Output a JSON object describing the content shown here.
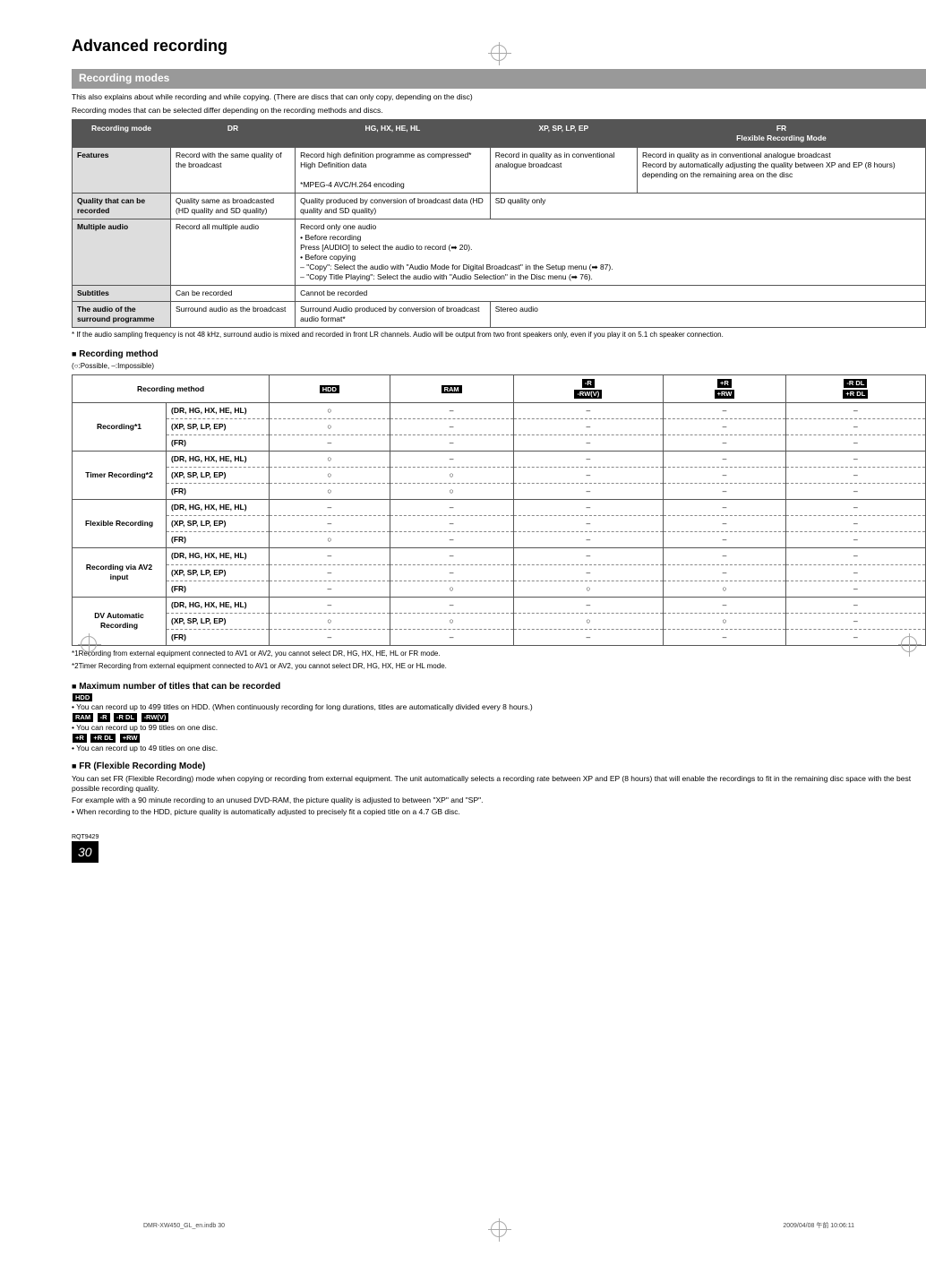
{
  "page": {
    "title": "Advanced recording",
    "section_bar": "Recording modes",
    "intro1": "This also explains about while recording and while copying. (There are discs that can only copy, depending on the disc)",
    "intro2": "Recording modes that can be selected differ depending on the recording methods and discs.",
    "rqt": "RQT9429",
    "pagenum": "30",
    "footer_left": "DMR-XW450_GL_en.indb   30",
    "footer_right": "2009/04/08   午前 10:06:11"
  },
  "modes_table": {
    "headers": {
      "c0": "Recording mode",
      "c1": "DR",
      "c2": "HG, HX, HE, HL",
      "c3": "XP, SP, LP, EP",
      "c4_a": "FR",
      "c4_b": "Flexible Recording Mode"
    },
    "rows": {
      "features": {
        "label": "Features",
        "c1": "Record with the same quality of the broadcast",
        "c2": "Record high definition programme as compressed* High Definition data\n\n*MPEG-4 AVC/H.264 encoding",
        "c3": "Record in quality as in conventional analogue broadcast",
        "c4": "Record in quality as in conventional analogue broadcast\nRecord by automatically adjusting the quality between XP and EP (8 hours) depending on the remaining area on the disc"
      },
      "quality": {
        "label": "Quality that can be recorded",
        "c1": "Quality same as broadcasted\n(HD quality and SD quality)",
        "c2": "Quality produced by conversion of broadcast data (HD quality and SD quality)",
        "c34": "SD quality only"
      },
      "multiple": {
        "label": "Multiple audio",
        "c1": "Record all multiple audio",
        "c234": "Record only one audio\n• Before recording\n    Press [AUDIO] to select the audio to record (➡ 20).\n• Before copying\n  – \"Copy\": Select the audio with \"Audio Mode for Digital Broadcast\" in the Setup menu (➡ 87).\n  – \"Copy Title Playing\": Select the audio with \"Audio Selection\" in the Disc menu (➡ 76)."
      },
      "subtitles": {
        "label": "Subtitles",
        "c1": "Can be recorded",
        "c234": "Cannot be recorded"
      },
      "audio": {
        "label": "The audio of the surround programme",
        "c1": "Surround audio as the broadcast",
        "c2": "Surround Audio produced by conversion of broadcast audio format*",
        "c34": "Stereo audio"
      }
    },
    "footnote": "*  If the audio sampling frequency is not 48 kHz, surround audio is mixed and recorded in front LR channels. Audio will be output from two front speakers only, even if you play it on 5.1 ch speaker connection."
  },
  "method_section": {
    "heading": "Recording method",
    "legend": "(○:Possible, –:Impossible)",
    "col_method": "Recording method",
    "badges": {
      "hdd": "HDD",
      "ram": "RAM",
      "r": "-R",
      "rwv": "-RW(V)",
      "pr": "+R",
      "prw": "+RW",
      "rdl": "-R DL",
      "prdl": "+R DL"
    },
    "rows": [
      {
        "group": "Recording*1",
        "modes": [
          {
            "m": "(DR, HG, HX, HE, HL)",
            "v": [
              "○",
              "–",
              "–",
              "–",
              "–"
            ]
          },
          {
            "m": "(XP, SP, LP, EP)",
            "v": [
              "○",
              "–",
              "–",
              "–",
              "–"
            ]
          },
          {
            "m": "(FR)",
            "v": [
              "–",
              "–",
              "–",
              "–",
              "–"
            ]
          }
        ]
      },
      {
        "group": "Timer Recording*2",
        "modes": [
          {
            "m": "(DR, HG, HX, HE, HL)",
            "v": [
              "○",
              "–",
              "–",
              "–",
              "–"
            ]
          },
          {
            "m": "(XP, SP, LP, EP)",
            "v": [
              "○",
              "○",
              "–",
              "–",
              "–"
            ]
          },
          {
            "m": "(FR)",
            "v": [
              "○",
              "○",
              "–",
              "–",
              "–"
            ]
          }
        ]
      },
      {
        "group": "Flexible Recording",
        "modes": [
          {
            "m": "(DR, HG, HX, HE, HL)",
            "v": [
              "–",
              "–",
              "–",
              "–",
              "–"
            ]
          },
          {
            "m": "(XP, SP, LP, EP)",
            "v": [
              "–",
              "–",
              "–",
              "–",
              "–"
            ]
          },
          {
            "m": "(FR)",
            "v": [
              "○",
              "–",
              "–",
              "–",
              "–"
            ]
          }
        ]
      },
      {
        "group": "Recording via AV2 input",
        "modes": [
          {
            "m": "(DR, HG, HX, HE, HL)",
            "v": [
              "–",
              "–",
              "–",
              "–",
              "–"
            ]
          },
          {
            "m": "(XP, SP, LP, EP)",
            "v": [
              "–",
              "–",
              "–",
              "–",
              "–"
            ]
          },
          {
            "m": "(FR)",
            "v": [
              "–",
              "○",
              "○",
              "○",
              "–"
            ]
          }
        ]
      },
      {
        "group": "DV Automatic Recording",
        "modes": [
          {
            "m": "(DR, HG, HX, HE, HL)",
            "v": [
              "–",
              "–",
              "–",
              "–",
              "–"
            ]
          },
          {
            "m": "(XP, SP, LP, EP)",
            "v": [
              "○",
              "○",
              "○",
              "○",
              "–"
            ]
          },
          {
            "m": "(FR)",
            "v": [
              "–",
              "–",
              "–",
              "–",
              "–"
            ]
          }
        ]
      }
    ],
    "fn1": "*1Recording from external equipment connected to AV1 or AV2, you cannot select DR, HG, HX, HE, HL or FR mode.",
    "fn2": "*2Timer Recording from external equipment connected to AV1 or AV2, you cannot select DR, HG, HX, HE or HL mode."
  },
  "max_titles": {
    "heading": "Maximum number of titles that can be recorded",
    "p1": "• You can record up to 499 titles on HDD. (When continuously recording for long durations, titles are automatically divided every 8 hours.)",
    "p2": "• You can record up to 99 titles on one disc.",
    "p3": "• You can record up to 49 titles on one disc."
  },
  "fr_mode": {
    "heading": "FR (Flexible Recording Mode)",
    "p1": "You can set FR (Flexible Recording) mode when copying or recording from external equipment. The unit automatically selects a recording rate between XP and EP (8 hours) that will enable the recordings to fit in the remaining disc space with the best possible recording quality.",
    "p2": "For example with a 90 minute recording to an unused DVD-RAM, the picture quality is adjusted to between \"XP\" and \"SP\".",
    "p3": "• When recording to the HDD, picture quality is automatically adjusted to precisely fit a copied title on a 4.7 GB disc."
  }
}
